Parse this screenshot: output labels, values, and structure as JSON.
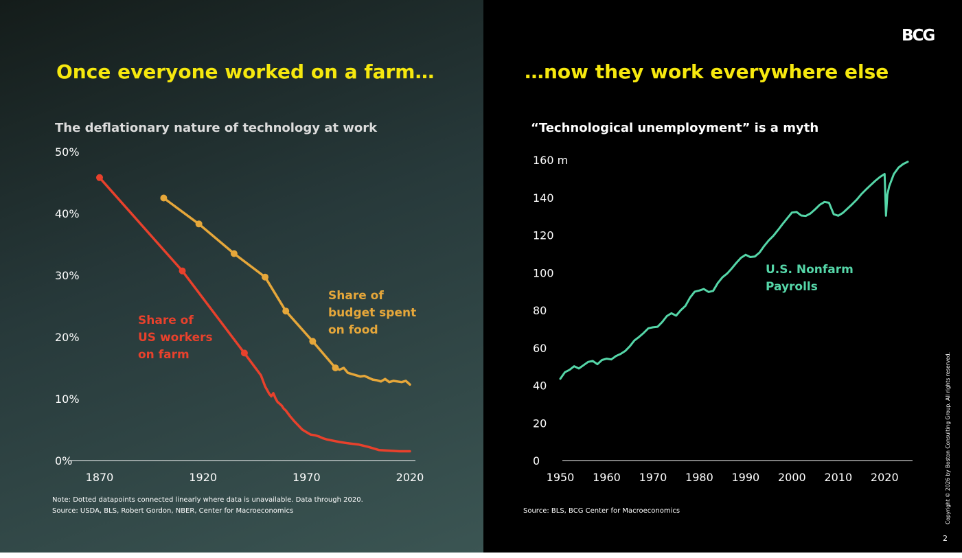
{
  "slide": {
    "page_number": "2",
    "copyright": "Copyright © 2026 by Boston Consulting Group. All rights reserved.",
    "logo_text": "BCG"
  },
  "colors": {
    "headline": "#f6e80e",
    "farm_workers": "#e8412c",
    "food_budget": "#e6a73a",
    "payrolls": "#55d6a8"
  },
  "left": {
    "headline": "Once everyone worked on a farm…",
    "note": "Note: Dotted datapoints connected linearly where data is unavailable. Data through 2020.",
    "source": "Source: USDA, BLS, Robert Gordon, NBER, Center for Macroeconomics"
  },
  "right": {
    "headline": "…now they work everywhere else",
    "source": "Source: BLS, BCG Center for Macroeconomics"
  },
  "chart_data": [
    {
      "type": "line",
      "title": "The deflationary nature of technology at work",
      "xlabel": "",
      "ylabel": "",
      "xlim": [
        1870,
        2020
      ],
      "ylim": [
        0,
        50
      ],
      "x_ticks": [
        1870,
        1920,
        1970,
        2020
      ],
      "x_tick_labels": [
        "1870",
        "1920",
        "1970",
        "2020"
      ],
      "y_ticks": [
        0,
        10,
        20,
        30,
        40,
        50
      ],
      "y_tick_labels": [
        "0%",
        "10%",
        "20%",
        "30%",
        "40%",
        "50%"
      ],
      "grid": false,
      "series": [
        {
          "name": "Share of US workers on farm",
          "label_lines": [
            "Share of",
            "US workers",
            "on farm"
          ],
          "color": "#e8412c",
          "x": [
            1870,
            1910,
            1940,
            1948,
            1950,
            1951,
            1952,
            1953,
            1954,
            1955,
            1956,
            1957,
            1958,
            1959,
            1960,
            1962,
            1964,
            1966,
            1968,
            1970,
            1972,
            1974,
            1976,
            1978,
            1980,
            1983,
            1986,
            1990,
            1995,
            2000,
            2005,
            2010,
            2015,
            2020
          ],
          "y": [
            45.8,
            30.7,
            17.4,
            13.8,
            12.0,
            11.4,
            10.8,
            10.4,
            10.9,
            10.1,
            9.5,
            9.2,
            8.9,
            8.4,
            8.1,
            7.2,
            6.4,
            5.7,
            5.0,
            4.6,
            4.2,
            4.1,
            3.9,
            3.6,
            3.4,
            3.2,
            3.0,
            2.8,
            2.6,
            2.2,
            1.7,
            1.6,
            1.5,
            1.5
          ],
          "markers_at": [
            1870,
            1910,
            1940
          ]
        },
        {
          "name": "Share of budget spent on food",
          "label_lines": [
            "Share of",
            "budget spent",
            "on food"
          ],
          "color": "#e6a73a",
          "x": [
            1901,
            1918,
            1935,
            1950,
            1960,
            1973,
            1984,
            1986,
            1988,
            1990,
            1992,
            1994,
            1996,
            1998,
            2000,
            2002,
            2004,
            2006,
            2008,
            2010,
            2012,
            2014,
            2016,
            2018,
            2019,
            2020
          ],
          "y": [
            42.5,
            38.3,
            33.5,
            29.7,
            24.2,
            19.3,
            15.0,
            14.7,
            15.0,
            14.2,
            14.0,
            13.8,
            13.6,
            13.7,
            13.4,
            13.1,
            13.0,
            12.8,
            13.2,
            12.7,
            12.9,
            12.8,
            12.7,
            12.9,
            12.6,
            12.3
          ],
          "markers_at": [
            1901,
            1918,
            1935,
            1950,
            1960,
            1973,
            1984
          ]
        }
      ]
    },
    {
      "type": "line",
      "title": "“Technological unemployment” is a myth",
      "xlabel": "",
      "ylabel": "",
      "xlim": [
        1950,
        2025
      ],
      "ylim": [
        0,
        160
      ],
      "x_ticks": [
        1950,
        1960,
        1970,
        1980,
        1990,
        2000,
        2010,
        2020
      ],
      "x_tick_labels": [
        "1950",
        "1960",
        "1970",
        "1980",
        "1990",
        "2000",
        "2010",
        "2020"
      ],
      "y_ticks": [
        0,
        20,
        40,
        60,
        80,
        100,
        120,
        140,
        160
      ],
      "y_tick_labels": [
        "0",
        "20",
        "40",
        "60",
        "80",
        "100",
        "120",
        "140",
        "160 m"
      ],
      "grid": false,
      "series": [
        {
          "name": "U.S. Nonfarm Payrolls",
          "label_lines": [
            "U.S. Nonfarm",
            "Payrolls"
          ],
          "color": "#55d6a8",
          "x": [
            1950,
            1951,
            1952,
            1953,
            1954,
            1955,
            1956,
            1957,
            1958,
            1959,
            1960,
            1961,
            1962,
            1963,
            1964,
            1965,
            1966,
            1967,
            1968,
            1969,
            1970,
            1971,
            1972,
            1973,
            1974,
            1975,
            1976,
            1977,
            1978,
            1979,
            1980,
            1981,
            1982,
            1983,
            1984,
            1985,
            1986,
            1987,
            1988,
            1989,
            1990,
            1991,
            1992,
            1993,
            1994,
            1995,
            1996,
            1997,
            1998,
            1999,
            2000,
            2001,
            2002,
            2003,
            2004,
            2005,
            2006,
            2007,
            2008,
            2009,
            2010,
            2011,
            2012,
            2013,
            2014,
            2015,
            2016,
            2017,
            2018,
            2019,
            2020,
            2020.3,
            2020.6,
            2021,
            2022,
            2023,
            2024,
            2025
          ],
          "y": [
            43.5,
            47.0,
            48.3,
            50.2,
            49.0,
            50.7,
            52.5,
            53.0,
            51.3,
            53.5,
            54.2,
            53.8,
            55.6,
            56.7,
            58.3,
            60.8,
            63.9,
            65.8,
            67.9,
            70.4,
            70.9,
            71.2,
            73.7,
            76.9,
            78.4,
            77.1,
            80.0,
            82.3,
            86.7,
            89.9,
            90.5,
            91.3,
            89.7,
            90.3,
            94.5,
            97.5,
            99.5,
            102.2,
            105.2,
            107.9,
            109.5,
            108.3,
            108.6,
            110.7,
            114.2,
            117.2,
            119.6,
            122.7,
            125.9,
            129.0,
            132.0,
            132.3,
            130.4,
            130.2,
            131.5,
            133.7,
            136.1,
            137.6,
            137.2,
            131.1,
            130.3,
            131.8,
            134.1,
            136.4,
            138.9,
            141.8,
            144.3,
            146.6,
            148.9,
            150.9,
            152.5,
            130.3,
            141.5,
            146.0,
            152.5,
            155.9,
            157.8,
            159.0
          ]
        }
      ]
    }
  ]
}
